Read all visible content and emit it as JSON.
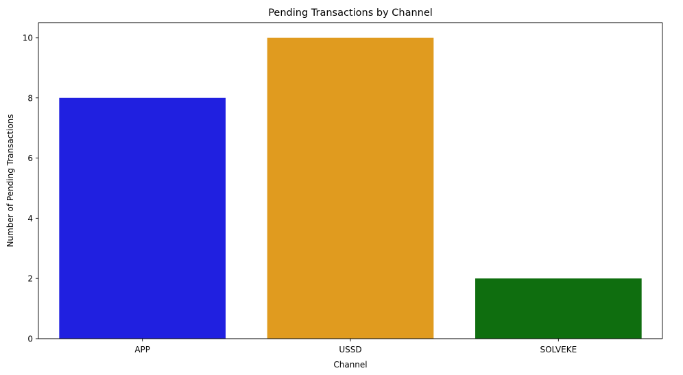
{
  "chart_data": {
    "type": "bar",
    "title": "Pending Transactions by Channel",
    "xlabel": "Channel",
    "ylabel": "Number of Pending Transactions",
    "categories": [
      "APP",
      "USSD",
      "SOLVEKE"
    ],
    "values": [
      8,
      10,
      2
    ],
    "colors": [
      "#2020e0",
      "#e09b1f",
      "#0f6e0f"
    ],
    "ylim": [
      0,
      10.5
    ],
    "yticks": [
      0,
      2,
      4,
      6,
      8,
      10
    ],
    "grid": false,
    "legend": "none"
  }
}
